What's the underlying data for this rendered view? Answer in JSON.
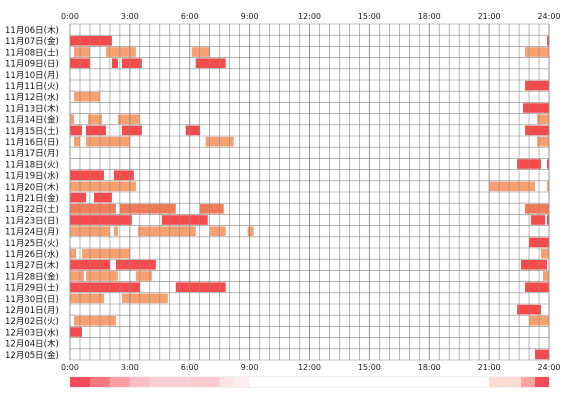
{
  "chart_data": {
    "type": "heatmap",
    "title": "",
    "xlabel": "",
    "ylabel": "",
    "xlim": [
      0,
      24
    ],
    "x_ticks": [
      "0:00",
      "3:00",
      "6:00",
      "9:00",
      "12:00",
      "15:00",
      "18:00",
      "21:00",
      "24:00"
    ],
    "x_tick_hours": [
      0,
      3,
      6,
      9,
      12,
      15,
      18,
      21,
      24
    ],
    "grid": true,
    "colors": {
      "high": "#f84a4a",
      "mid": "#f47a56",
      "low": "#f8a070",
      "grid": "#888888",
      "summary_bg": "#ffffff"
    },
    "rows": [
      {
        "label": "11月06日(木)",
        "intervals": []
      },
      {
        "label": "11月07日(金)",
        "intervals": [
          [
            0.0,
            2.1,
            "high"
          ],
          [
            23.9,
            24.0,
            "high"
          ]
        ]
      },
      {
        "label": "11月08日(土)",
        "intervals": [
          [
            0.2,
            1.0,
            "low"
          ],
          [
            1.8,
            3.3,
            "low"
          ],
          [
            6.1,
            7.0,
            "low"
          ],
          [
            22.8,
            24.0,
            "low"
          ]
        ]
      },
      {
        "label": "11月09日(日)",
        "intervals": [
          [
            0.0,
            1.0,
            "high"
          ],
          [
            2.1,
            2.4,
            "high"
          ],
          [
            2.6,
            3.6,
            "high"
          ],
          [
            6.3,
            7.8,
            "high"
          ]
        ]
      },
      {
        "label": "11月10日(月)",
        "intervals": []
      },
      {
        "label": "11月11日(火)",
        "intervals": [
          [
            22.8,
            24.0,
            "high"
          ]
        ]
      },
      {
        "label": "11月12日(水)",
        "intervals": [
          [
            0.2,
            1.5,
            "low"
          ]
        ]
      },
      {
        "label": "11月13日(木)",
        "intervals": [
          [
            22.7,
            24.0,
            "high"
          ]
        ]
      },
      {
        "label": "11月14日(金)",
        "intervals": [
          [
            0.0,
            0.2,
            "low"
          ],
          [
            0.9,
            1.6,
            "low"
          ],
          [
            2.4,
            3.5,
            "low"
          ],
          [
            23.4,
            24.0,
            "low"
          ]
        ]
      },
      {
        "label": "11月15日(土)",
        "intervals": [
          [
            0.0,
            0.6,
            "high"
          ],
          [
            0.8,
            1.8,
            "high"
          ],
          [
            2.6,
            3.6,
            "high"
          ],
          [
            5.8,
            6.5,
            "high"
          ],
          [
            22.8,
            24.0,
            "high"
          ]
        ]
      },
      {
        "label": "11月16日(日)",
        "intervals": [
          [
            0.2,
            0.5,
            "low"
          ],
          [
            0.8,
            3.0,
            "low"
          ],
          [
            6.8,
            8.2,
            "low"
          ],
          [
            23.4,
            24.0,
            "low"
          ]
        ]
      },
      {
        "label": "11月17日(月)",
        "intervals": []
      },
      {
        "label": "11月18日(火)",
        "intervals": [
          [
            22.4,
            23.6,
            "high"
          ],
          [
            23.9,
            24.0,
            "high"
          ]
        ]
      },
      {
        "label": "11月19日(水)",
        "intervals": [
          [
            0.0,
            1.7,
            "high"
          ],
          [
            2.2,
            3.2,
            "high"
          ]
        ]
      },
      {
        "label": "11月20日(木)",
        "intervals": [
          [
            0.0,
            3.3,
            "low"
          ],
          [
            21.0,
            23.3,
            "low"
          ],
          [
            23.9,
            24.0,
            "low"
          ]
        ]
      },
      {
        "label": "11月21日(金)",
        "intervals": [
          [
            0.0,
            0.8,
            "high"
          ],
          [
            1.2,
            2.1,
            "high"
          ]
        ]
      },
      {
        "label": "11月22日(土)",
        "intervals": [
          [
            0.0,
            2.3,
            "mid"
          ],
          [
            2.5,
            5.3,
            "mid"
          ],
          [
            6.5,
            7.7,
            "mid"
          ],
          [
            22.8,
            24.0,
            "mid"
          ]
        ]
      },
      {
        "label": "11月23日(日)",
        "intervals": [
          [
            0.0,
            3.1,
            "high"
          ],
          [
            4.6,
            6.9,
            "high"
          ],
          [
            23.1,
            23.8,
            "high"
          ],
          [
            23.9,
            24.0,
            "high"
          ]
        ]
      },
      {
        "label": "11月24日(月)",
        "intervals": [
          [
            0.0,
            2.0,
            "low"
          ],
          [
            2.2,
            2.4,
            "low"
          ],
          [
            3.4,
            6.3,
            "low"
          ],
          [
            7.0,
            7.8,
            "low"
          ],
          [
            8.9,
            9.2,
            "low"
          ]
        ]
      },
      {
        "label": "11月25日(火)",
        "intervals": [
          [
            23.0,
            24.0,
            "high"
          ]
        ]
      },
      {
        "label": "11月26日(水)",
        "intervals": [
          [
            0.0,
            0.3,
            "low"
          ],
          [
            0.6,
            3.0,
            "low"
          ],
          [
            23.6,
            24.0,
            "low"
          ]
        ]
      },
      {
        "label": "11月27日(木)",
        "intervals": [
          [
            0.0,
            2.0,
            "high"
          ],
          [
            2.3,
            4.3,
            "high"
          ],
          [
            22.6,
            23.9,
            "high"
          ]
        ]
      },
      {
        "label": "11月28日(金)",
        "intervals": [
          [
            0.0,
            0.7,
            "low"
          ],
          [
            0.8,
            2.4,
            "low"
          ],
          [
            3.3,
            4.1,
            "low"
          ],
          [
            23.7,
            24.0,
            "low"
          ]
        ]
      },
      {
        "label": "11月29日(土)",
        "intervals": [
          [
            0.0,
            3.5,
            "high"
          ],
          [
            5.3,
            7.8,
            "high"
          ],
          [
            22.8,
            24.0,
            "high"
          ]
        ]
      },
      {
        "label": "11月30日(日)",
        "intervals": [
          [
            0.0,
            1.7,
            "low"
          ],
          [
            2.6,
            4.9,
            "low"
          ]
        ]
      },
      {
        "label": "12月01日(月)",
        "intervals": [
          [
            22.4,
            23.6,
            "high"
          ]
        ]
      },
      {
        "label": "12月02日(火)",
        "intervals": [
          [
            0.2,
            2.3,
            "low"
          ],
          [
            23.0,
            24.0,
            "low"
          ]
        ]
      },
      {
        "label": "12月03日(水)",
        "intervals": [
          [
            0.0,
            0.6,
            "high"
          ]
        ]
      },
      {
        "label": "12月04日(木)",
        "intervals": []
      },
      {
        "label": "12月05日(金)",
        "intervals": [
          [
            23.3,
            24.0,
            "high"
          ]
        ]
      }
    ],
    "summary_bar": [
      {
        "range": [
          0.0,
          1.0
        ],
        "color": "#f84a5a"
      },
      {
        "range": [
          1.0,
          2.0
        ],
        "color": "#fa7a80"
      },
      {
        "range": [
          2.0,
          3.0
        ],
        "color": "#fca0a6"
      },
      {
        "range": [
          3.0,
          4.0
        ],
        "color": "#fdbfc3"
      },
      {
        "range": [
          4.0,
          6.0
        ],
        "color": "#fed0d4"
      },
      {
        "range": [
          6.0,
          7.5
        ],
        "color": "#fecbcf"
      },
      {
        "range": [
          7.5,
          8.2
        ],
        "color": "#fee2e4"
      },
      {
        "range": [
          8.2,
          9.0
        ],
        "color": "#ffeef0"
      },
      {
        "range": [
          9.0,
          21.0
        ],
        "color": "#ffffff"
      },
      {
        "range": [
          21.0,
          22.6
        ],
        "color": "#ffdcd4"
      },
      {
        "range": [
          22.6,
          23.3
        ],
        "color": "#fda3a0"
      },
      {
        "range": [
          23.3,
          24.0
        ],
        "color": "#f84a5a"
      }
    ]
  }
}
